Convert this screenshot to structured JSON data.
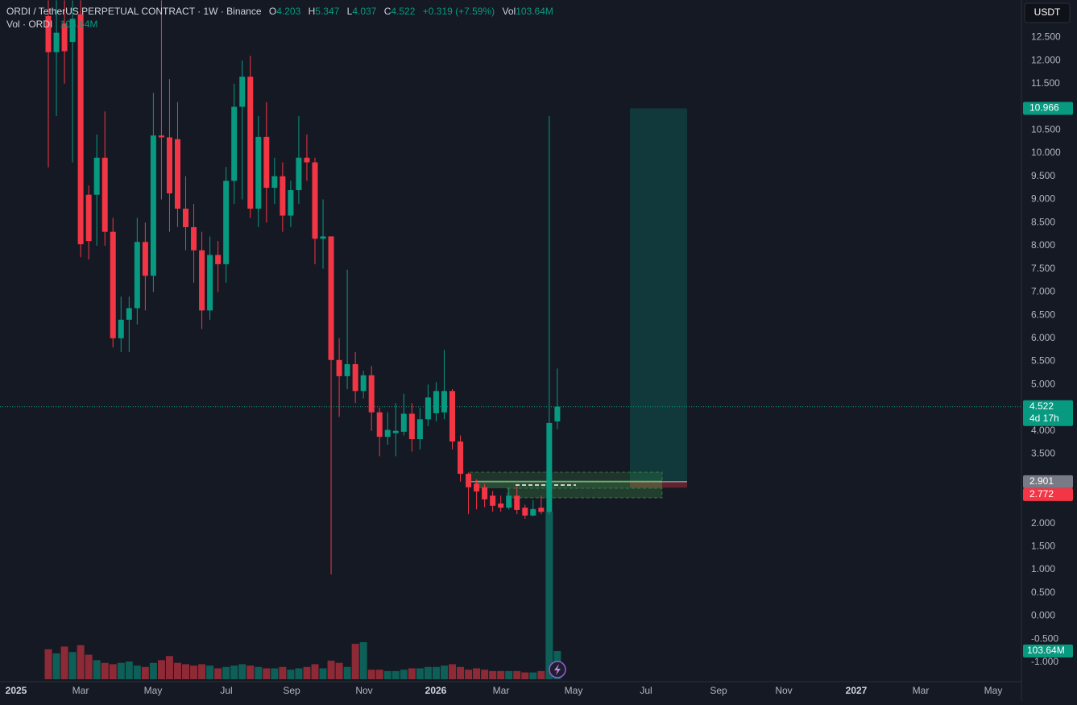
{
  "header": {
    "symbol": "ORDI / TetherUS PERPETUAL CONTRACT · 1W · Binance",
    "o": "O",
    "h": "H",
    "l": "L",
    "c": "C",
    "change": "+0.319 (+7.59%)",
    "vol": "Vol"
  },
  "chart_data": {
    "type": "candlestick",
    "currency": "USDT",
    "ylim": [
      -1.366,
      13.307
    ],
    "yticks": [
      {
        "value": 12.5,
        "label": "12.500"
      },
      {
        "value": 12,
        "label": "12.000"
      },
      {
        "value": 11.5,
        "label": "11.500"
      },
      {
        "value": 11,
        "label": "11.000"
      },
      {
        "value": 10.5,
        "label": "10.500"
      },
      {
        "value": 10,
        "label": "10.000"
      },
      {
        "value": 9.5,
        "label": "9.500"
      },
      {
        "value": 9,
        "label": "9.000"
      },
      {
        "value": 8.5,
        "label": "8.500"
      },
      {
        "value": 8,
        "label": "8.000"
      },
      {
        "value": 7.5,
        "label": "7.500"
      },
      {
        "value": 7,
        "label": "7.000"
      },
      {
        "value": 6.5,
        "label": "6.500"
      },
      {
        "value": 6,
        "label": "6.000"
      },
      {
        "value": 5.5,
        "label": "5.500"
      },
      {
        "value": 5,
        "label": "5.000"
      },
      {
        "value": 4,
        "label": "4.000"
      },
      {
        "value": 3.5,
        "label": "3.500"
      },
      {
        "value": 2,
        "label": "2.000"
      },
      {
        "value": 1.5,
        "label": "1.500"
      },
      {
        "value": 1,
        "label": "1.000"
      },
      {
        "value": 0.5,
        "label": "0.500"
      },
      {
        "value": 0,
        "label": "0.000"
      },
      {
        "value": -0.5,
        "label": "-0.500"
      },
      {
        "value": -1,
        "label": "-1.000"
      }
    ],
    "xticks": [
      "2025",
      "Mar",
      "May",
      "Jul",
      "Sep",
      "Nov",
      "2026",
      "Mar",
      "May",
      "Jul",
      "Sep",
      "Nov",
      "2027",
      "Mar",
      "May"
    ],
    "colors": {
      "up": "#089981",
      "down": "#f23645"
    },
    "open": [
      12.96,
      12.18,
      12.8,
      12.4,
      13.0,
      9.1,
      9.1,
      9.9,
      8.3,
      6.0,
      6.4,
      6.65,
      8.08,
      7.35,
      10.38,
      10.34,
      10.3,
      8.8,
      8.4,
      7.9,
      6.6,
      7.8,
      7.6,
      9.4,
      11.0,
      11.65,
      8.8,
      10.35,
      9.25,
      9.5,
      8.65,
      9.2,
      9.9,
      9.8,
      8.15,
      8.2,
      5.53,
      5.18,
      5.44,
      4.86,
      5.2,
      4.4,
      3.87,
      3.95,
      3.98,
      4.37,
      3.82,
      4.25,
      4.38,
      4.4,
      4.86,
      3.77,
      3.07,
      2.86,
      2.78,
      2.6,
      2.43,
      2.34,
      2.6,
      2.34,
      2.17,
      2.34,
      2.25,
      4.203
    ],
    "high": [
      13.3,
      13.3,
      13.3,
      13.3,
      13.3,
      9.3,
      10.4,
      10.9,
      8.6,
      6.9,
      6.9,
      8.6,
      8.5,
      11.3,
      13.3,
      11.6,
      11.1,
      9.5,
      8.9,
      8.3,
      8.2,
      8.1,
      9.7,
      11.5,
      12.0,
      12.1,
      10.8,
      11.1,
      9.9,
      9.8,
      9.4,
      10.8,
      10.4,
      9.9,
      9.0,
      8.2,
      6.0,
      7.48,
      5.7,
      5.3,
      5.4,
      4.5,
      4.4,
      4.6,
      4.8,
      4.6,
      4.5,
      5.0,
      5.05,
      5.75,
      4.9,
      3.9,
      3.1,
      2.95,
      2.85,
      2.7,
      2.6,
      2.75,
      2.8,
      2.4,
      2.5,
      2.6,
      10.8,
      5.347
    ],
    "low": [
      9.69,
      10.8,
      11.5,
      9.8,
      7.75,
      7.7,
      8.0,
      8.0,
      5.8,
      5.7,
      5.7,
      6.3,
      6.6,
      7.0,
      9.0,
      8.3,
      8.4,
      7.9,
      7.2,
      6.2,
      6.4,
      7.0,
      7.2,
      8.9,
      9.0,
      8.6,
      8.4,
      8.5,
      8.9,
      8.3,
      8.4,
      8.9,
      9.4,
      7.6,
      7.5,
      0.9,
      4.3,
      4.9,
      4.6,
      4.7,
      4.0,
      3.45,
      3.7,
      3.45,
      3.9,
      3.55,
      3.6,
      4.1,
      4.2,
      4.25,
      3.6,
      2.9,
      2.2,
      2.3,
      2.35,
      2.25,
      2.25,
      2.3,
      2.2,
      2.1,
      2.15,
      2.2,
      2.2,
      4.037
    ],
    "close": [
      12.18,
      12.6,
      12.2,
      12.9,
      8.03,
      8.1,
      9.9,
      8.3,
      6.0,
      6.4,
      6.65,
      8.08,
      7.35,
      10.38,
      10.34,
      9.13,
      8.8,
      8.4,
      7.9,
      6.6,
      7.8,
      7.6,
      9.4,
      11.0,
      11.65,
      8.8,
      10.35,
      9.25,
      9.5,
      8.65,
      9.2,
      9.9,
      9.8,
      8.15,
      8.2,
      5.53,
      5.18,
      5.44,
      4.86,
      5.2,
      4.4,
      3.87,
      4.02,
      4.0,
      4.37,
      3.82,
      4.25,
      4.72,
      4.86,
      4.86,
      3.77,
      3.07,
      2.78,
      2.69,
      2.52,
      2.38,
      2.34,
      2.6,
      2.29,
      2.17,
      2.31,
      2.25,
      4.17,
      4.522
    ],
    "volume": {
      "name": "Vol · ORDI",
      "values": [
        110,
        95,
        120,
        100,
        125,
        90,
        70,
        60,
        55,
        60,
        65,
        50,
        45,
        60,
        70,
        85,
        60,
        55,
        50,
        55,
        50,
        40,
        45,
        50,
        55,
        50,
        45,
        40,
        40,
        45,
        35,
        40,
        45,
        55,
        40,
        68,
        60,
        45,
        130,
        136,
        35,
        35,
        30,
        30,
        35,
        40,
        40,
        45,
        45,
        50,
        55,
        45,
        35,
        40,
        35,
        30,
        30,
        30,
        30,
        25,
        25,
        30,
        616,
        103.64
      ],
      "value_labels": [
        null,
        null,
        null,
        null,
        null,
        null,
        null,
        null,
        null,
        null,
        null,
        null,
        null,
        null,
        null,
        null,
        null,
        null,
        null,
        null,
        null,
        null,
        null,
        null,
        null,
        null,
        null,
        null,
        null,
        null,
        null,
        null,
        null,
        null,
        null,
        null,
        null,
        null,
        null,
        null,
        null,
        null,
        null,
        null,
        null,
        null,
        null,
        null,
        null,
        null,
        null,
        null,
        null,
        null,
        null,
        null,
        null,
        null,
        null,
        null,
        null,
        null,
        null,
        "103.64M"
      ]
    },
    "countdown": "4d 17h",
    "position": {
      "target": 10.966,
      "entry": 2.901,
      "stop": 2.772
    }
  }
}
